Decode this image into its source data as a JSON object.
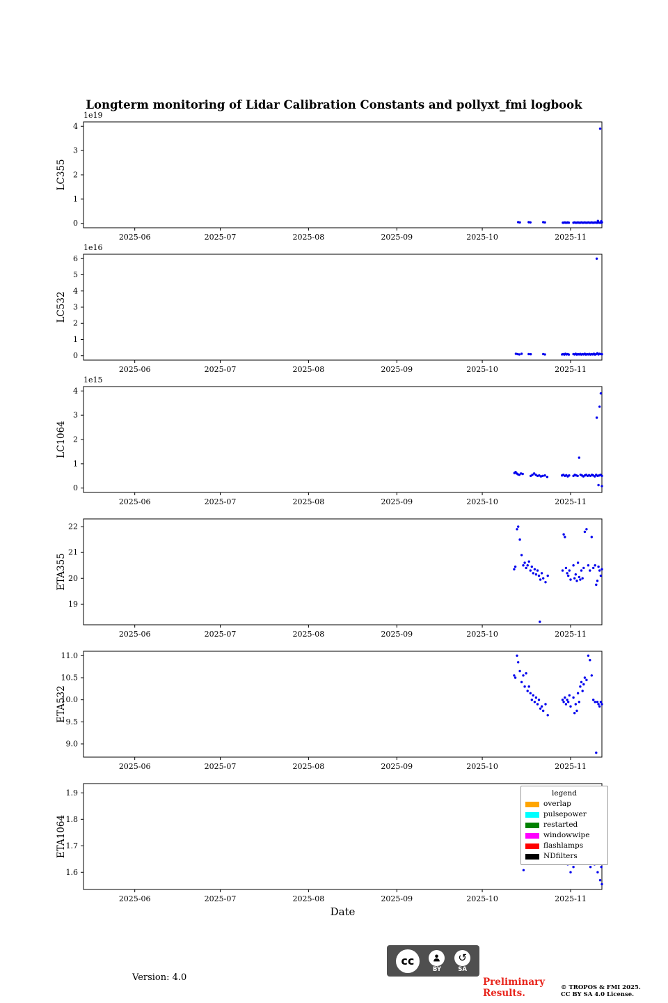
{
  "title": "Longterm monitoring of Lidar Calibration Constants and pollyxt_fmi logbook",
  "xlabel": "Date",
  "x_axis": {
    "domain_days": [
      0,
      182
    ],
    "tick_positions_days": [
      18,
      48,
      79,
      110,
      140,
      171
    ],
    "tick_labels": [
      "2025-06",
      "2025-07",
      "2025-08",
      "2025-09",
      "2025-10",
      "2025-11"
    ]
  },
  "marker_color": "#0000ee",
  "chart_data": [
    {
      "type": "scatter",
      "ylabel": "LC355",
      "offset_label": "1e19",
      "ylim": [
        -0.18,
        4.18
      ],
      "ytick_values": [
        0,
        1,
        2,
        3,
        4
      ],
      "ytick_labels": [
        "0",
        "1",
        "2",
        "3",
        "4"
      ],
      "points": [
        [
          152.6,
          0.05
        ],
        [
          153.2,
          0.04
        ],
        [
          156.3,
          0.05
        ],
        [
          156.9,
          0.04
        ],
        [
          161.4,
          0.05
        ],
        [
          162.0,
          0.04
        ],
        [
          168.3,
          0.03
        ],
        [
          168.6,
          0.03
        ],
        [
          169.0,
          0.04
        ],
        [
          169.3,
          0.03
        ],
        [
          169.7,
          0.03
        ],
        [
          170.0,
          0.04
        ],
        [
          170.4,
          0.03
        ],
        [
          172.0,
          0.03
        ],
        [
          172.4,
          0.04
        ],
        [
          172.8,
          0.03
        ],
        [
          173.2,
          0.03
        ],
        [
          173.6,
          0.04
        ],
        [
          174.0,
          0.03
        ],
        [
          174.4,
          0.03
        ],
        [
          174.8,
          0.04
        ],
        [
          175.2,
          0.03
        ],
        [
          175.6,
          0.03
        ],
        [
          176.0,
          0.04
        ],
        [
          176.4,
          0.03
        ],
        [
          176.8,
          0.03
        ],
        [
          177.2,
          0.04
        ],
        [
          177.6,
          0.03
        ],
        [
          178.0,
          0.03
        ],
        [
          178.4,
          0.04
        ],
        [
          178.8,
          0.03
        ],
        [
          179.2,
          0.03
        ],
        [
          179.6,
          0.04
        ],
        [
          180.0,
          0.03
        ],
        [
          180.4,
          0.03
        ],
        [
          180.6,
          0.1
        ],
        [
          180.8,
          0.04
        ],
        [
          181.2,
          0.03
        ],
        [
          181.4,
          3.9
        ],
        [
          181.6,
          0.03
        ],
        [
          181.8,
          0.09
        ],
        [
          182.0,
          0.04
        ]
      ]
    },
    {
      "type": "scatter",
      "ylabel": "LC532",
      "offset_label": "1e16",
      "ylim": [
        -0.27,
        6.27
      ],
      "ytick_values": [
        0,
        1,
        2,
        3,
        4,
        5,
        6
      ],
      "ytick_labels": [
        "0",
        "1",
        "2",
        "3",
        "4",
        "5",
        "6"
      ],
      "points": [
        [
          151.8,
          0.12
        ],
        [
          152.4,
          0.1
        ],
        [
          153.0,
          0.08
        ],
        [
          153.8,
          0.12
        ],
        [
          156.3,
          0.1
        ],
        [
          157.0,
          0.09
        ],
        [
          161.4,
          0.1
        ],
        [
          162.0,
          0.08
        ],
        [
          168.0,
          0.08
        ],
        [
          168.4,
          0.1
        ],
        [
          168.8,
          0.07
        ],
        [
          169.2,
          0.12
        ],
        [
          169.6,
          0.08
        ],
        [
          170.0,
          0.1
        ],
        [
          170.4,
          0.07
        ],
        [
          172.0,
          0.1
        ],
        [
          172.4,
          0.08
        ],
        [
          172.8,
          0.12
        ],
        [
          173.2,
          0.07
        ],
        [
          173.6,
          0.1
        ],
        [
          174.0,
          0.08
        ],
        [
          174.4,
          0.11
        ],
        [
          174.8,
          0.07
        ],
        [
          175.2,
          0.1
        ],
        [
          175.6,
          0.08
        ],
        [
          176.0,
          0.12
        ],
        [
          176.4,
          0.07
        ],
        [
          176.8,
          0.1
        ],
        [
          177.2,
          0.08
        ],
        [
          177.6,
          0.11
        ],
        [
          178.0,
          0.07
        ],
        [
          178.4,
          0.1
        ],
        [
          178.8,
          0.08
        ],
        [
          179.2,
          0.12
        ],
        [
          179.6,
          0.07
        ],
        [
          180.0,
          0.1
        ],
        [
          180.2,
          6.0
        ],
        [
          180.4,
          0.15
        ],
        [
          180.8,
          0.08
        ],
        [
          181.2,
          0.12
        ],
        [
          181.6,
          0.1
        ],
        [
          182.0,
          0.09
        ]
      ]
    },
    {
      "type": "scatter",
      "ylabel": "LC1064",
      "offset_label": "1e15",
      "ylim": [
        -0.18,
        4.18
      ],
      "ytick_values": [
        0,
        1,
        2,
        3,
        4
      ],
      "ytick_labels": [
        "0",
        "1",
        "2",
        "3",
        "4"
      ],
      "points": [
        [
          151.3,
          0.62
        ],
        [
          151.7,
          0.66
        ],
        [
          152.1,
          0.6
        ],
        [
          152.5,
          0.57
        ],
        [
          153.0,
          0.55
        ],
        [
          153.6,
          0.6
        ],
        [
          154.2,
          0.58
        ],
        [
          157.0,
          0.5
        ],
        [
          157.6,
          0.55
        ],
        [
          158.2,
          0.6
        ],
        [
          158.8,
          0.55
        ],
        [
          159.4,
          0.5
        ],
        [
          160.0,
          0.52
        ],
        [
          160.6,
          0.48
        ],
        [
          161.2,
          0.5
        ],
        [
          162.0,
          0.52
        ],
        [
          162.8,
          0.46
        ],
        [
          168.0,
          0.52
        ],
        [
          168.5,
          0.55
        ],
        [
          169.0,
          0.5
        ],
        [
          169.5,
          0.53
        ],
        [
          170.0,
          0.48
        ],
        [
          170.5,
          0.52
        ],
        [
          172.0,
          0.5
        ],
        [
          172.5,
          0.55
        ],
        [
          173.0,
          0.52
        ],
        [
          173.5,
          0.5
        ],
        [
          174.0,
          1.25
        ],
        [
          174.5,
          0.55
        ],
        [
          175.0,
          0.52
        ],
        [
          175.5,
          0.48
        ],
        [
          176.0,
          0.52
        ],
        [
          176.5,
          0.55
        ],
        [
          177.0,
          0.5
        ],
        [
          177.5,
          0.53
        ],
        [
          178.0,
          0.5
        ],
        [
          178.5,
          0.55
        ],
        [
          179.0,
          0.52
        ],
        [
          179.5,
          0.48
        ],
        [
          180.0,
          0.55
        ],
        [
          180.2,
          2.9
        ],
        [
          180.5,
          0.5
        ],
        [
          180.8,
          0.12
        ],
        [
          181.0,
          0.52
        ],
        [
          181.2,
          3.35
        ],
        [
          181.5,
          0.55
        ],
        [
          181.6,
          3.9
        ],
        [
          182.0,
          0.5
        ],
        [
          182.0,
          0.08
        ]
      ]
    },
    {
      "type": "scatter",
      "ylabel": "ETA355",
      "offset_label": null,
      "ylim": [
        18.2,
        22.3
      ],
      "ytick_values": [
        19,
        20,
        21,
        22
      ],
      "ytick_labels": [
        "19",
        "20",
        "21",
        "22"
      ],
      "points": [
        [
          151.2,
          20.35
        ],
        [
          151.6,
          20.45
        ],
        [
          152.2,
          21.9
        ],
        [
          152.6,
          22.0
        ],
        [
          153.2,
          21.5
        ],
        [
          153.8,
          20.9
        ],
        [
          154.4,
          20.5
        ],
        [
          154.9,
          20.6
        ],
        [
          155.4,
          20.4
        ],
        [
          155.9,
          20.5
        ],
        [
          156.4,
          20.65
        ],
        [
          156.9,
          20.3
        ],
        [
          157.4,
          20.45
        ],
        [
          157.9,
          20.2
        ],
        [
          158.4,
          20.35
        ],
        [
          158.9,
          20.15
        ],
        [
          159.4,
          20.3
        ],
        [
          159.9,
          20.1
        ],
        [
          160.2,
          18.32
        ],
        [
          160.4,
          19.95
        ],
        [
          160.9,
          20.2
        ],
        [
          161.4,
          20.0
        ],
        [
          162.2,
          19.85
        ],
        [
          163.0,
          20.1
        ],
        [
          168.2,
          20.3
        ],
        [
          168.6,
          21.7
        ],
        [
          169.0,
          21.6
        ],
        [
          169.4,
          20.4
        ],
        [
          169.8,
          20.2
        ],
        [
          170.2,
          20.1
        ],
        [
          170.6,
          20.3
        ],
        [
          171.0,
          19.95
        ],
        [
          172.0,
          20.5
        ],
        [
          172.4,
          20.0
        ],
        [
          172.8,
          20.15
        ],
        [
          173.2,
          19.9
        ],
        [
          173.6,
          20.6
        ],
        [
          174.0,
          20.05
        ],
        [
          174.4,
          19.95
        ],
        [
          174.8,
          20.3
        ],
        [
          175.2,
          20.0
        ],
        [
          175.6,
          20.4
        ],
        [
          176.0,
          21.8
        ],
        [
          176.6,
          21.9
        ],
        [
          177.2,
          20.5
        ],
        [
          177.8,
          20.3
        ],
        [
          178.4,
          21.6
        ],
        [
          179.0,
          20.4
        ],
        [
          179.6,
          20.5
        ],
        [
          180.0,
          19.75
        ],
        [
          180.4,
          19.9
        ],
        [
          180.8,
          20.45
        ],
        [
          181.2,
          20.3
        ],
        [
          181.6,
          20.1
        ],
        [
          182.0,
          20.35
        ]
      ]
    },
    {
      "type": "scatter",
      "ylabel": "ETA532",
      "offset_label": null,
      "ylim": [
        8.7,
        11.1
      ],
      "ytick_values": [
        9.0,
        9.5,
        10.0,
        10.5,
        11.0
      ],
      "ytick_labels": [
        "9.0",
        "9.5",
        "10.0",
        "10.5",
        "11.0"
      ],
      "points": [
        [
          151.2,
          10.55
        ],
        [
          151.6,
          10.5
        ],
        [
          152.2,
          11.0
        ],
        [
          152.6,
          10.85
        ],
        [
          153.2,
          10.65
        ],
        [
          153.8,
          10.4
        ],
        [
          154.4,
          10.55
        ],
        [
          154.9,
          10.3
        ],
        [
          155.4,
          10.6
        ],
        [
          155.9,
          10.2
        ],
        [
          156.4,
          10.3
        ],
        [
          156.9,
          10.15
        ],
        [
          157.4,
          10.0
        ],
        [
          157.9,
          10.1
        ],
        [
          158.4,
          9.95
        ],
        [
          158.9,
          10.05
        ],
        [
          159.4,
          9.9
        ],
        [
          159.9,
          10.0
        ],
        [
          160.4,
          9.8
        ],
        [
          160.9,
          9.85
        ],
        [
          161.4,
          9.75
        ],
        [
          162.2,
          9.9
        ],
        [
          163.0,
          9.65
        ],
        [
          168.2,
          10.0
        ],
        [
          168.6,
          9.95
        ],
        [
          169.0,
          10.05
        ],
        [
          169.4,
          9.9
        ],
        [
          169.8,
          10.0
        ],
        [
          170.2,
          9.95
        ],
        [
          170.6,
          10.1
        ],
        [
          171.0,
          9.85
        ],
        [
          172.0,
          10.05
        ],
        [
          172.4,
          9.7
        ],
        [
          172.8,
          9.9
        ],
        [
          173.2,
          9.75
        ],
        [
          173.6,
          10.15
        ],
        [
          174.0,
          9.95
        ],
        [
          174.4,
          10.3
        ],
        [
          174.8,
          10.4
        ],
        [
          175.2,
          10.2
        ],
        [
          175.6,
          10.35
        ],
        [
          176.0,
          10.5
        ],
        [
          176.6,
          10.45
        ],
        [
          177.2,
          11.0
        ],
        [
          177.8,
          10.9
        ],
        [
          178.4,
          10.55
        ],
        [
          179.0,
          10.0
        ],
        [
          179.6,
          9.95
        ],
        [
          180.0,
          8.8
        ],
        [
          180.4,
          9.95
        ],
        [
          180.8,
          9.9
        ],
        [
          181.2,
          9.85
        ],
        [
          181.6,
          9.95
        ],
        [
          182.0,
          9.9
        ]
      ]
    },
    {
      "type": "scatter",
      "ylabel": "ETA1064",
      "offset_label": null,
      "ylim": [
        1.535,
        1.935
      ],
      "ytick_values": [
        1.6,
        1.7,
        1.8,
        1.9
      ],
      "ytick_labels": [
        "1.6",
        "1.7",
        "1.8",
        "1.9"
      ],
      "points": [
        [
          154.5,
          1.608
        ],
        [
          170.0,
          1.63
        ],
        [
          171.0,
          1.6
        ],
        [
          172.0,
          1.62
        ],
        [
          173.5,
          1.72
        ],
        [
          174.2,
          1.7
        ],
        [
          175.0,
          1.73
        ],
        [
          176.0,
          1.66
        ],
        [
          177.0,
          1.64
        ],
        [
          178.0,
          1.62
        ],
        [
          178.8,
          1.75
        ],
        [
          179.4,
          1.63
        ],
        [
          180.0,
          1.66
        ],
        [
          180.5,
          1.6
        ],
        [
          181.0,
          1.65
        ],
        [
          181.4,
          1.57
        ],
        [
          181.8,
          1.62
        ],
        [
          182.0,
          1.555
        ]
      ]
    }
  ],
  "legend": {
    "title": "legend",
    "items": [
      {
        "label": "overlap",
        "color": "#ffa500"
      },
      {
        "label": "pulsepower",
        "color": "#00ffff"
      },
      {
        "label": "restarted",
        "color": "#008000"
      },
      {
        "label": "windowwipe",
        "color": "#ff00ff"
      },
      {
        "label": "flashlamps",
        "color": "#ff0000"
      },
      {
        "label": "NDfilters",
        "color": "#000000"
      }
    ]
  },
  "cc_badge": {
    "cc_label": "cc",
    "by_label": "BY",
    "sa_label": "SA"
  },
  "footer": {
    "version": "Version: 4.0",
    "preliminary_line1": "Preliminary",
    "preliminary_line2": "Results.",
    "copyright_line1": "© TROPOS & FMI 2025.",
    "copyright_line2": "CC BY SA 4.0 License."
  }
}
